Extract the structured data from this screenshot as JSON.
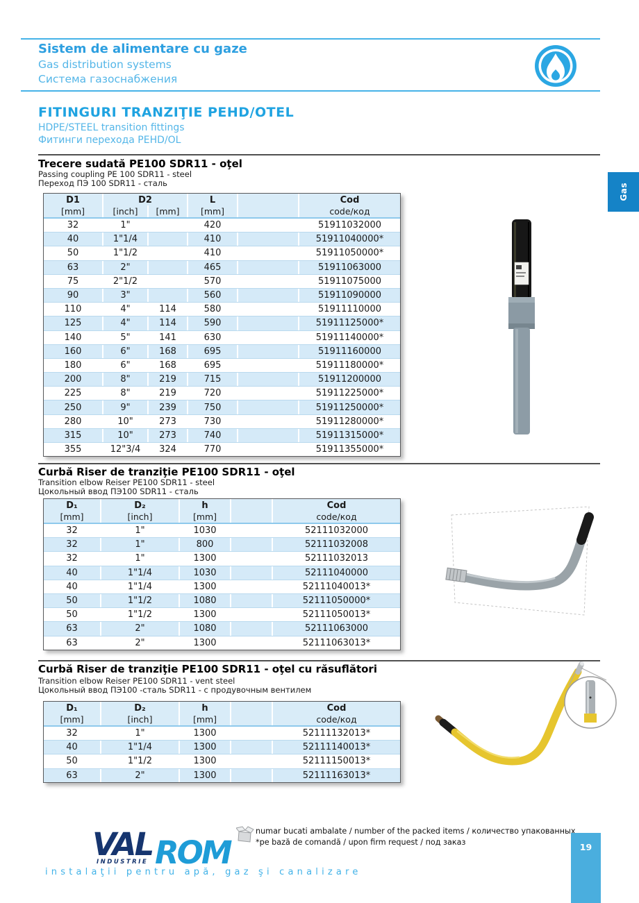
{
  "header": {
    "title_ro": "Sistem de alimentare cu gaze",
    "title_en": "Gas distribution systems",
    "title_ru": "Система газоснабжения"
  },
  "main_title": {
    "ro": "FITINGURI TRANZIŢIE PEHD/OTEL",
    "en": "HDPE/STEEL transition fittings",
    "ru": "Фитинги перехода PEHD/OL"
  },
  "side_tab": {
    "label": "Gas"
  },
  "page": {
    "number": "19"
  },
  "sections": [
    {
      "title": "Trecere sudată PE100 SDR11 - oţel",
      "subtitle_en": "Passing coupling PE 100 SDR11 - steel",
      "subtitle_ru": "Переход ПЭ 100 SDR11 - сталь",
      "table": {
        "header": {
          "d1": "D1",
          "d2": "D2",
          "l": "L",
          "cod": "Cod",
          "u_mm1": "[mm]",
          "u_inch": "[inch]",
          "u_mm2": "[mm]",
          "u_mm3": "[mm]",
          "u_cod": "code/код"
        },
        "rows": [
          [
            "32",
            "1\"",
            "",
            "420",
            "",
            "51911032000"
          ],
          [
            "40",
            "1\"1/4",
            "",
            "410",
            "",
            "51911040000*"
          ],
          [
            "50",
            "1\"1/2",
            "",
            "410",
            "",
            "51911050000*"
          ],
          [
            "63",
            "2\"",
            "",
            "465",
            "",
            "51911063000"
          ],
          [
            "75",
            "2\"1/2",
            "",
            "570",
            "",
            "51911075000"
          ],
          [
            "90",
            "3\"",
            "",
            "560",
            "",
            "51911090000"
          ],
          [
            "110",
            "4\"",
            "114",
            "580",
            "",
            "51911110000"
          ],
          [
            "125",
            "4\"",
            "114",
            "590",
            "",
            "51911125000*"
          ],
          [
            "140",
            "5\"",
            "141",
            "630",
            "",
            "51911140000*"
          ],
          [
            "160",
            "6\"",
            "168",
            "695",
            "",
            "51911160000"
          ],
          [
            "180",
            "6\"",
            "168",
            "695",
            "",
            "51911180000*"
          ],
          [
            "200",
            "8\"",
            "219",
            "715",
            "",
            "51911200000"
          ],
          [
            "225",
            "8\"",
            "219",
            "720",
            "",
            "51911225000*"
          ],
          [
            "250",
            "9\"",
            "239",
            "750",
            "",
            "51911250000*"
          ],
          [
            "280",
            "10\"",
            "273",
            "730",
            "",
            "51911280000*"
          ],
          [
            "315",
            "10\"",
            "273",
            "740",
            "",
            "51911315000*"
          ],
          [
            "355",
            "12\"3/4",
            "324",
            "770",
            "",
            "51911355000*"
          ]
        ]
      }
    },
    {
      "title": "Curbă Riser de tranziţie PE100 SDR11 - oţel",
      "subtitle_en": "Transition elbow Reiser PE100 SDR11 - steel",
      "subtitle_ru": "Цокольный ввод ПЭ100 SDR11 - сталь",
      "table": {
        "header": {
          "d1": "D₁",
          "d2": "D₂",
          "h": "h",
          "cod": "Cod",
          "u_mm1": "[mm]",
          "u_inch": "[inch]",
          "u_mm2": "[mm]",
          "u_cod": "code/код"
        },
        "rows": [
          [
            "32",
            "1\"",
            "1030",
            "",
            "52111032000"
          ],
          [
            "32",
            "1\"",
            "800",
            "",
            "52111032008"
          ],
          [
            "32",
            "1\"",
            "1300",
            "",
            "52111032013"
          ],
          [
            "40",
            "1\"1/4",
            "1030",
            "",
            "52111040000"
          ],
          [
            "40",
            "1\"1/4",
            "1300",
            "",
            "52111040013*"
          ],
          [
            "50",
            "1\"1/2",
            "1080",
            "",
            "52111050000*"
          ],
          [
            "50",
            "1\"1/2",
            "1300",
            "",
            "52111050013*"
          ],
          [
            "63",
            "2\"",
            "1080",
            "",
            "52111063000"
          ],
          [
            "63",
            "2\"",
            "1300",
            "",
            "52111063013*"
          ]
        ]
      }
    },
    {
      "title": "Curbă Riser de tranziţie PE100 SDR11 - oţel cu răsuflători",
      "subtitle_en": "Transition elbow Reiser PE100 SDR11 - vent steel",
      "subtitle_ru": "Цокольный ввод ПЭ100 -сталь SDR11 - с продувочным вентилем",
      "table": {
        "header": {
          "d1": "D₁",
          "d2": "D₂",
          "h": "h",
          "cod": "Cod",
          "u_mm1": "[mm]",
          "u_inch": "[inch]",
          "u_mm2": "[mm]",
          "u_cod": "code/код"
        },
        "rows": [
          [
            "32",
            "1\"",
            "1300",
            "",
            "52111132013*"
          ],
          [
            "40",
            "1\"1/4",
            "1300",
            "",
            "52111140013*"
          ],
          [
            "50",
            "1\"1/2",
            "1300",
            "",
            "52111150013*"
          ],
          [
            "63",
            "2\"",
            "1300",
            "",
            "52111163013*"
          ]
        ]
      }
    }
  ],
  "footer": {
    "note1": "numar bucati ambalate / number of the packed items / количество упакованных",
    "note2": "*pe bază de comandă / upon firm request / под заказ",
    "logo": {
      "val": "VAL",
      "rom": "ROM",
      "industrie": "INDUSTRIE"
    },
    "tagline": "instalaţii pentru apă, gaz şi canalizare"
  },
  "colors": {
    "accent_blue": "#45b2e8",
    "title_blue": "#1fa3e1",
    "tab_blue": "#1583c7",
    "page_box_blue": "#4aaede",
    "table_header_bg": "#d9ecf8",
    "row_alt_bg": "#d5eaf8",
    "logo_navy": "#16356f",
    "logo_blue": "#1e9cd7",
    "pipe_yellow": "#e6c52e"
  }
}
